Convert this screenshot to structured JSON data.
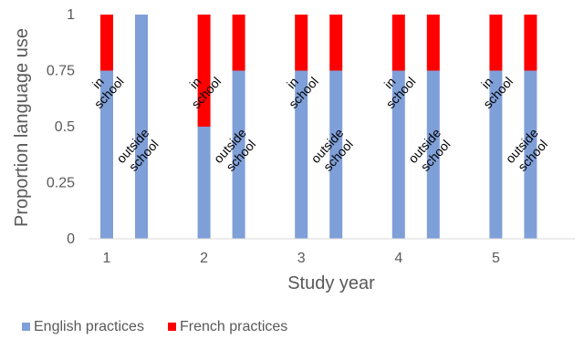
{
  "chart_data": {
    "type": "bar",
    "stacked": true,
    "title": "",
    "xlabel": "Study year",
    "ylabel": "Proportion language use",
    "ylim": [
      0,
      1
    ],
    "y_ticks": [
      "0",
      "0.25",
      "0.5",
      "0.75",
      "1"
    ],
    "categories": [
      "1",
      "2",
      "3",
      "4",
      "5"
    ],
    "bars": [
      {
        "year": "1",
        "setting": "in school",
        "english": 0.75,
        "french": 0.25
      },
      {
        "year": "1",
        "setting": "outside school",
        "english": 1.0,
        "french": 0.0
      },
      {
        "year": "2",
        "setting": "in school",
        "english": 0.5,
        "french": 0.5
      },
      {
        "year": "2",
        "setting": "outside school",
        "english": 0.75,
        "french": 0.25
      },
      {
        "year": "3",
        "setting": "in school",
        "english": 0.75,
        "french": 0.25
      },
      {
        "year": "3",
        "setting": "outside school",
        "english": 0.75,
        "french": 0.25
      },
      {
        "year": "4",
        "setting": "in school",
        "english": 0.75,
        "french": 0.25
      },
      {
        "year": "4",
        "setting": "outside school",
        "english": 0.75,
        "french": 0.25
      },
      {
        "year": "5",
        "setting": "in school",
        "english": 0.75,
        "french": 0.25
      },
      {
        "year": "5",
        "setting": "outside school",
        "english": 0.75,
        "french": 0.25
      }
    ],
    "series": [
      {
        "name": "English practices",
        "color": "#7F9FD8"
      },
      {
        "name": "French practices",
        "color": "#FF0000"
      }
    ],
    "legend": {
      "position": "bottom-left"
    },
    "grid": false
  }
}
